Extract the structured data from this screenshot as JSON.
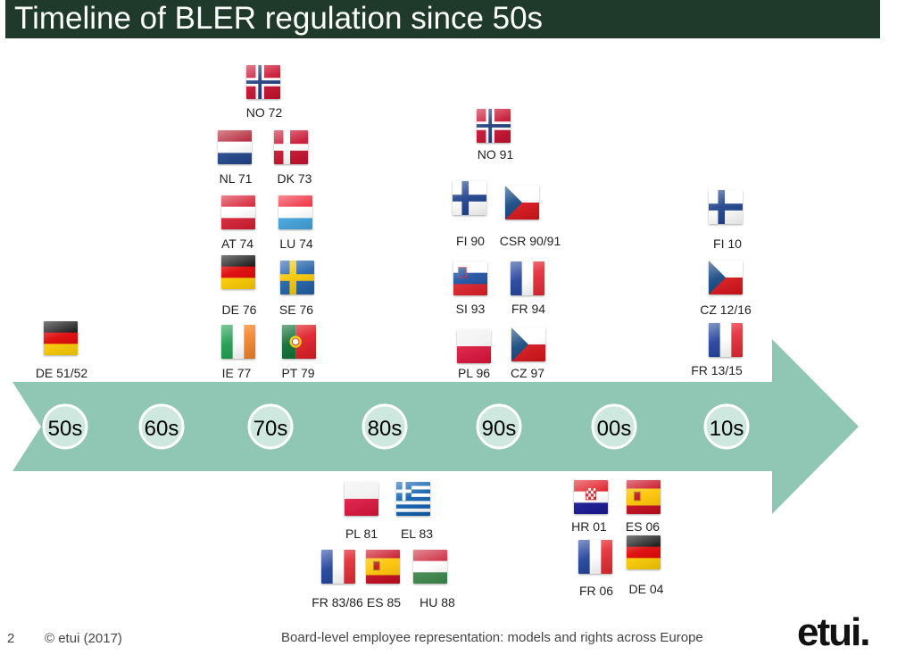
{
  "slide": {
    "title": "Timeline of BLER regulation since 50s",
    "page_number": "2",
    "copyright": "© etui (2017)",
    "caption": "Board-level employee representation: models and rights across Europe",
    "logo_text": "etui."
  },
  "colors": {
    "title_bar": "#1f3a2b",
    "arrow": "#8fc6b4",
    "decade_circle": "#cfe8df"
  },
  "decades": [
    "50s",
    "60s",
    "70s",
    "80s",
    "90s",
    "00s",
    "10s"
  ],
  "flags": [
    {
      "label": "NO 72",
      "country": "norway-flag-icon"
    },
    {
      "label": "NL  71",
      "country": "netherlands-flag-icon"
    },
    {
      "label": "DK 73",
      "country": "denmark-flag-icon"
    },
    {
      "label": "AT 74",
      "country": "austria-flag-icon"
    },
    {
      "label": "LU 74",
      "country": "luxembourg-flag-icon"
    },
    {
      "label": "DE 76",
      "country": "germany-flag-icon"
    },
    {
      "label": "SE 76",
      "country": "sweden-flag-icon"
    },
    {
      "label": "IE  77",
      "country": "ireland-flag-icon"
    },
    {
      "label": "PT 79",
      "country": "portugal-flag-icon"
    },
    {
      "label": "DE 51/52",
      "country": "germany-flag-icon"
    },
    {
      "label": "NO 91",
      "country": "norway-flag-icon"
    },
    {
      "label": "FI 90",
      "country": "finland-flag-icon"
    },
    {
      "label": "CSR 90/91",
      "country": "czechoslovakia-flag-icon"
    },
    {
      "label": "SI 93",
      "country": "slovenia-flag-icon"
    },
    {
      "label": "FR 94",
      "country": "france-flag-icon"
    },
    {
      "label": "PL 96",
      "country": "poland-flag-icon"
    },
    {
      "label": "CZ 97",
      "country": "czechia-flag-icon"
    },
    {
      "label": "FI 10",
      "country": "finland-flag-icon"
    },
    {
      "label": "CZ 12/16",
      "country": "czechia-flag-icon"
    },
    {
      "label": "FR 13/15",
      "country": "france-flag-icon"
    },
    {
      "label": "PL 81",
      "country": "poland-flag-icon"
    },
    {
      "label": "EL 83",
      "country": "greece-flag-icon"
    },
    {
      "label": "FR 83/86",
      "country": "france-flag-icon"
    },
    {
      "label": "ES 85",
      "country": "spain-flag-icon"
    },
    {
      "label": "HU 88",
      "country": "hungary-flag-icon"
    },
    {
      "label": "HR 01",
      "country": "croatia-flag-icon"
    },
    {
      "label": "ES 06",
      "country": "spain-flag-icon"
    },
    {
      "label": "FR 06",
      "country": "france-flag-icon"
    },
    {
      "label": "DE 04",
      "country": "germany-flag-icon"
    }
  ]
}
